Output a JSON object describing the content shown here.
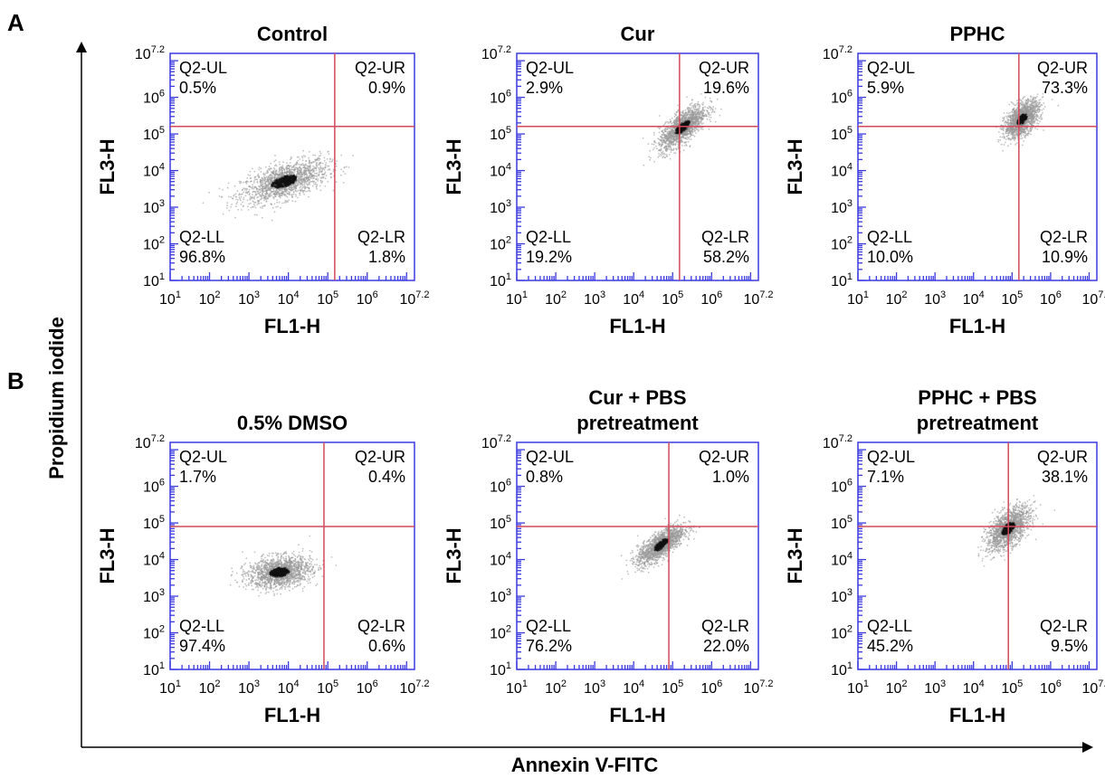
{
  "figure": {
    "panel_labels": [
      "A",
      "B"
    ],
    "y_axis_title": "Propidium iodide",
    "x_axis_title": "Annexin V-FITC"
  },
  "chart_data": [
    {
      "type": "scatter",
      "title": [
        "Control"
      ],
      "xlabel": "FL1-H",
      "ylabel": "FL3-H",
      "xscale": "log",
      "yscale": "log",
      "xlim": [
        10,
        15848932
      ],
      "ylim": [
        10,
        15848932
      ],
      "gate": {
        "x": 150000,
        "y": 160000
      },
      "quadrants": [
        {
          "name": "Q2-UL",
          "value": "0.5%"
        },
        {
          "name": "Q2-UR",
          "value": "0.9%"
        },
        {
          "name": "Q2-LL",
          "value": "96.8%"
        },
        {
          "name": "Q2-LR",
          "value": "1.8%"
        }
      ],
      "population": {
        "center": [
          8000,
          5000
        ],
        "spread": [
          0.55,
          0.4
        ],
        "tilt": 0.5
      }
    },
    {
      "type": "scatter",
      "title": [
        "Cur"
      ],
      "xlabel": "FL1-H",
      "ylabel": "FL3-H",
      "xscale": "log",
      "yscale": "log",
      "xlim": [
        10,
        15848932
      ],
      "ylim": [
        10,
        15848932
      ],
      "gate": {
        "x": 150000,
        "y": 160000
      },
      "quadrants": [
        {
          "name": "Q2-UL",
          "value": "2.9%"
        },
        {
          "name": "Q2-UR",
          "value": "19.6%"
        },
        {
          "name": "Q2-LL",
          "value": "19.2%"
        },
        {
          "name": "Q2-LR",
          "value": "58.2%"
        }
      ],
      "population": {
        "center": [
          180000,
          150000
        ],
        "spread": [
          0.3,
          0.35
        ],
        "tilt": 1.2
      }
    },
    {
      "type": "scatter",
      "title": [
        "PPHC"
      ],
      "xlabel": "FL1-H",
      "ylabel": "FL3-H",
      "xscale": "log",
      "yscale": "log",
      "xlim": [
        10,
        15848932
      ],
      "ylim": [
        10,
        15848932
      ],
      "gate": {
        "x": 150000,
        "y": 160000
      },
      "quadrants": [
        {
          "name": "Q2-UL",
          "value": "5.9%"
        },
        {
          "name": "Q2-UR",
          "value": "73.3%"
        },
        {
          "name": "Q2-LL",
          "value": "10.0%"
        },
        {
          "name": "Q2-LR",
          "value": "10.9%"
        }
      ],
      "population": {
        "center": [
          180000,
          250000
        ],
        "spread": [
          0.22,
          0.35
        ],
        "tilt": 1.0
      }
    },
    {
      "type": "scatter",
      "title": [
        "0.5% DMSO"
      ],
      "xlabel": "FL1-H",
      "ylabel": "FL3-H",
      "xscale": "log",
      "yscale": "log",
      "xlim": [
        10,
        15848932
      ],
      "ylim": [
        10,
        15848932
      ],
      "gate": {
        "x": 80000,
        "y": 80000
      },
      "quadrants": [
        {
          "name": "Q2-UL",
          "value": "1.7%"
        },
        {
          "name": "Q2-UR",
          "value": "0.4%"
        },
        {
          "name": "Q2-LL",
          "value": "97.4%"
        },
        {
          "name": "Q2-LR",
          "value": "0.6%"
        }
      ],
      "population": {
        "center": [
          6000,
          4500
        ],
        "spread": [
          0.4,
          0.35
        ],
        "tilt": 0.2
      }
    },
    {
      "type": "scatter",
      "title": [
        "Cur + PBS",
        "pretreatment"
      ],
      "xlabel": "FL1-H",
      "ylabel": "FL3-H",
      "xscale": "log",
      "yscale": "log",
      "xlim": [
        10,
        15848932
      ],
      "ylim": [
        10,
        15848932
      ],
      "gate": {
        "x": 80000,
        "y": 80000
      },
      "quadrants": [
        {
          "name": "Q2-UL",
          "value": "0.8%"
        },
        {
          "name": "Q2-UR",
          "value": "1.0%"
        },
        {
          "name": "Q2-LL",
          "value": "76.2%"
        },
        {
          "name": "Q2-LR",
          "value": "22.0%"
        }
      ],
      "population": {
        "center": [
          50000,
          25000
        ],
        "spread": [
          0.3,
          0.3
        ],
        "tilt": 1.1
      }
    },
    {
      "type": "scatter",
      "title": [
        "PPHC + PBS",
        "pretreatment"
      ],
      "xlabel": "FL1-H",
      "ylabel": "FL3-H",
      "xscale": "log",
      "yscale": "log",
      "xlim": [
        10,
        15848932
      ],
      "ylim": [
        10,
        15848932
      ],
      "gate": {
        "x": 80000,
        "y": 80000
      },
      "quadrants": [
        {
          "name": "Q2-UL",
          "value": "7.1%"
        },
        {
          "name": "Q2-UR",
          "value": "38.1%"
        },
        {
          "name": "Q2-LL",
          "value": "45.2%"
        },
        {
          "name": "Q2-LR",
          "value": "9.5%"
        }
      ],
      "population": {
        "center": [
          80000,
          70000
        ],
        "spread": [
          0.28,
          0.4
        ],
        "tilt": 1.0
      }
    }
  ],
  "colors": {
    "frame": "#3a3ae0",
    "gate": "#d24a5a",
    "dots": "#9a9a9a",
    "dense": "#111111",
    "text": "#000000"
  }
}
